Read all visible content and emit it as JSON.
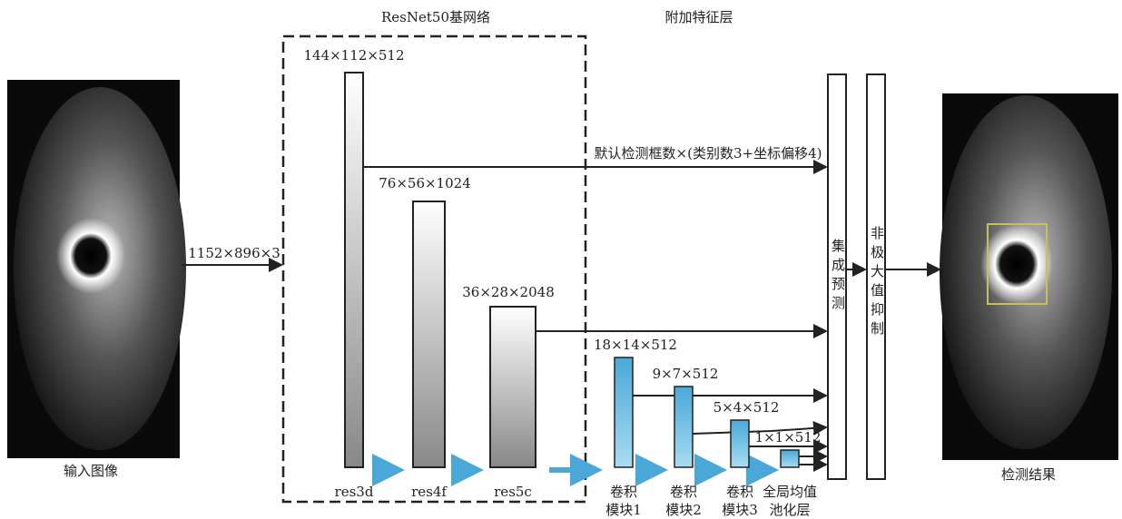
{
  "backbone_title": "ResNet50基网络",
  "extra_title": "附加特征层",
  "input": {
    "label": "输入图像",
    "size": "1152×896×3"
  },
  "backbone": [
    {
      "name": "res3d",
      "shape": "144×112×512"
    },
    {
      "name": "res4f",
      "shape": "76×56×1024"
    },
    {
      "name": "res5c",
      "shape": "36×28×2048"
    }
  ],
  "extra_layers": [
    {
      "name": [
        "卷积",
        "模块1"
      ],
      "shape": "18×14×512"
    },
    {
      "name": [
        "卷积",
        "模块2"
      ],
      "shape": "9×7×512"
    },
    {
      "name": [
        "卷积",
        "模块3"
      ],
      "shape": "5×4×512"
    },
    {
      "name": [
        "全局均值",
        "池化层"
      ],
      "shape": "1×1×512"
    }
  ],
  "output_note": "默认检测框数×(类别数3+坐标偏移4)",
  "ensemble": "集成预测",
  "nms": "非极大值抑制",
  "output": {
    "label": "检测结果"
  }
}
